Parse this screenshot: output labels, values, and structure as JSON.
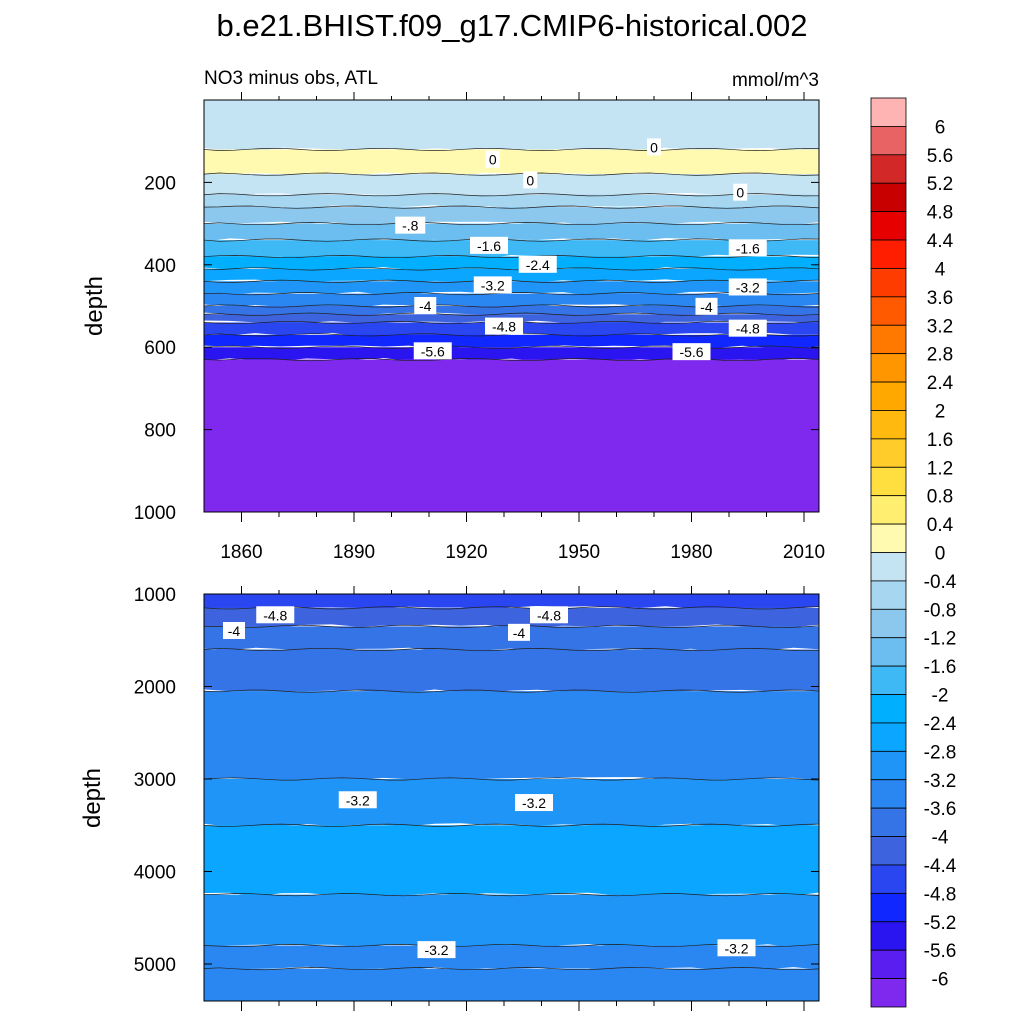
{
  "figure_title": "b.e21.BHIST.f09_g17.CMIP6-historical.002",
  "chart_data": [
    {
      "type": "heatmap",
      "panel": "upper",
      "title_left": "NO3 minus obs, ATL",
      "title_right": "mmol/m^3",
      "xlabel": "",
      "ylabel": "depth",
      "x_ticks": [
        "1860",
        "1890",
        "1920",
        "1950",
        "1980",
        "2010"
      ],
      "y_ticks": [
        "200",
        "400",
        "600",
        "800",
        "1000"
      ],
      "xlim": [
        1850,
        2014
      ],
      "ylim": [
        1000,
        0
      ],
      "levels": [
        {
          "depth": 120,
          "value": -0.4
        },
        {
          "depth": 180,
          "value": 0.2
        },
        {
          "depth": 230,
          "value": -0.2
        },
        {
          "depth": 260,
          "value": -0.6
        },
        {
          "depth": 300,
          "value": -1.0
        },
        {
          "depth": 340,
          "value": -1.4
        },
        {
          "depth": 380,
          "value": -1.8
        },
        {
          "depth": 410,
          "value": -2.2
        },
        {
          "depth": 440,
          "value": -2.6
        },
        {
          "depth": 470,
          "value": -3.0
        },
        {
          "depth": 500,
          "value": -3.4
        },
        {
          "depth": 520,
          "value": -3.8
        },
        {
          "depth": 540,
          "value": -4.2
        },
        {
          "depth": 570,
          "value": -4.6
        },
        {
          "depth": 600,
          "value": -5.0
        },
        {
          "depth": 630,
          "value": -5.4
        },
        {
          "depth": 1000,
          "value": -6.2
        }
      ],
      "contour_labels": [
        {
          "text": "0",
          "x": 1927,
          "y": 145
        },
        {
          "text": "0",
          "x": 1970,
          "y": 115
        },
        {
          "text": "0",
          "x": 1937,
          "y": 195
        },
        {
          "text": "0",
          "x": 1993,
          "y": 225
        },
        {
          "text": "-.8",
          "x": 1905,
          "y": 305
        },
        {
          "text": "-1.6",
          "x": 1926,
          "y": 354
        },
        {
          "text": "-1.6",
          "x": 1995,
          "y": 360
        },
        {
          "text": "-2.4",
          "x": 1939,
          "y": 400
        },
        {
          "text": "-3.2",
          "x": 1927,
          "y": 450
        },
        {
          "text": "-3.2",
          "x": 1995,
          "y": 455
        },
        {
          "text": "-4",
          "x": 1909,
          "y": 500
        },
        {
          "text": "-4",
          "x": 1984,
          "y": 502
        },
        {
          "text": "-4.8",
          "x": 1930,
          "y": 550
        },
        {
          "text": "-4.8",
          "x": 1995,
          "y": 555
        },
        {
          "text": "-5.6",
          "x": 1911,
          "y": 610
        },
        {
          "text": "-5.6",
          "x": 1980,
          "y": 612
        }
      ]
    },
    {
      "type": "heatmap",
      "panel": "lower",
      "xlabel": "",
      "ylabel": "depth",
      "y_ticks": [
        "1000",
        "2000",
        "3000",
        "4000",
        "5000"
      ],
      "xlim": [
        1850,
        2014
      ],
      "ylim": [
        5400,
        1000
      ],
      "levels": [
        {
          "depth": 1150,
          "value": -4.8
        },
        {
          "depth": 1350,
          "value": -4.4
        },
        {
          "depth": 1600,
          "value": -4.0
        },
        {
          "depth": 2050,
          "value": -3.8
        },
        {
          "depth": 3000,
          "value": -3.4
        },
        {
          "depth": 3500,
          "value": -3.0
        },
        {
          "depth": 4250,
          "value": -2.6
        },
        {
          "depth": 4800,
          "value": -3.0
        },
        {
          "depth": 5050,
          "value": -3.4
        },
        {
          "depth": 5400,
          "value": -3.6
        }
      ],
      "contour_labels": [
        {
          "text": "-4.8",
          "x": 1869,
          "y": 1230
        },
        {
          "text": "-4.8",
          "x": 1942,
          "y": 1230
        },
        {
          "text": "-4",
          "x": 1858,
          "y": 1400
        },
        {
          "text": "-4",
          "x": 1934,
          "y": 1420
        },
        {
          "text": "-3.2",
          "x": 1891,
          "y": 3230
        },
        {
          "text": "-3.2",
          "x": 1938,
          "y": 3260
        },
        {
          "text": "-3.2",
          "x": 1912,
          "y": 4850
        },
        {
          "text": "-3.2",
          "x": 1992,
          "y": 4830
        }
      ]
    }
  ],
  "colorbar": {
    "labels": [
      "6",
      "5.6",
      "5.2",
      "4.8",
      "4.4",
      "4",
      "3.6",
      "3.2",
      "2.8",
      "2.4",
      "2",
      "1.6",
      "1.2",
      "0.8",
      "0.4",
      "0",
      "-0.4",
      "-0.8",
      "-1.2",
      "-1.6",
      "-2",
      "-2.4",
      "-2.8",
      "-3.2",
      "-3.6",
      "-4",
      "-4.4",
      "-4.8",
      "-5.2",
      "-5.6",
      "-6"
    ],
    "colors": [
      "#ffb4b4",
      "#e86464",
      "#d22828",
      "#c80000",
      "#e60000",
      "#ff1e00",
      "#ff3c00",
      "#ff5a00",
      "#ff7800",
      "#ff9600",
      "#ffa800",
      "#ffb90f",
      "#ffcc2a",
      "#ffdf40",
      "#ffee70",
      "#fffab0",
      "#c4e4f4",
      "#a6d6f0",
      "#8cc8ee",
      "#6cbef0",
      "#3fb8f6",
      "#00b0ff",
      "#0aa6ff",
      "#1f95f8",
      "#2a86f0",
      "#3474e6",
      "#3d64de",
      "#2a46f0",
      "#1028ff",
      "#2a14f0",
      "#5a1ef0",
      "#7f28ee"
    ]
  }
}
